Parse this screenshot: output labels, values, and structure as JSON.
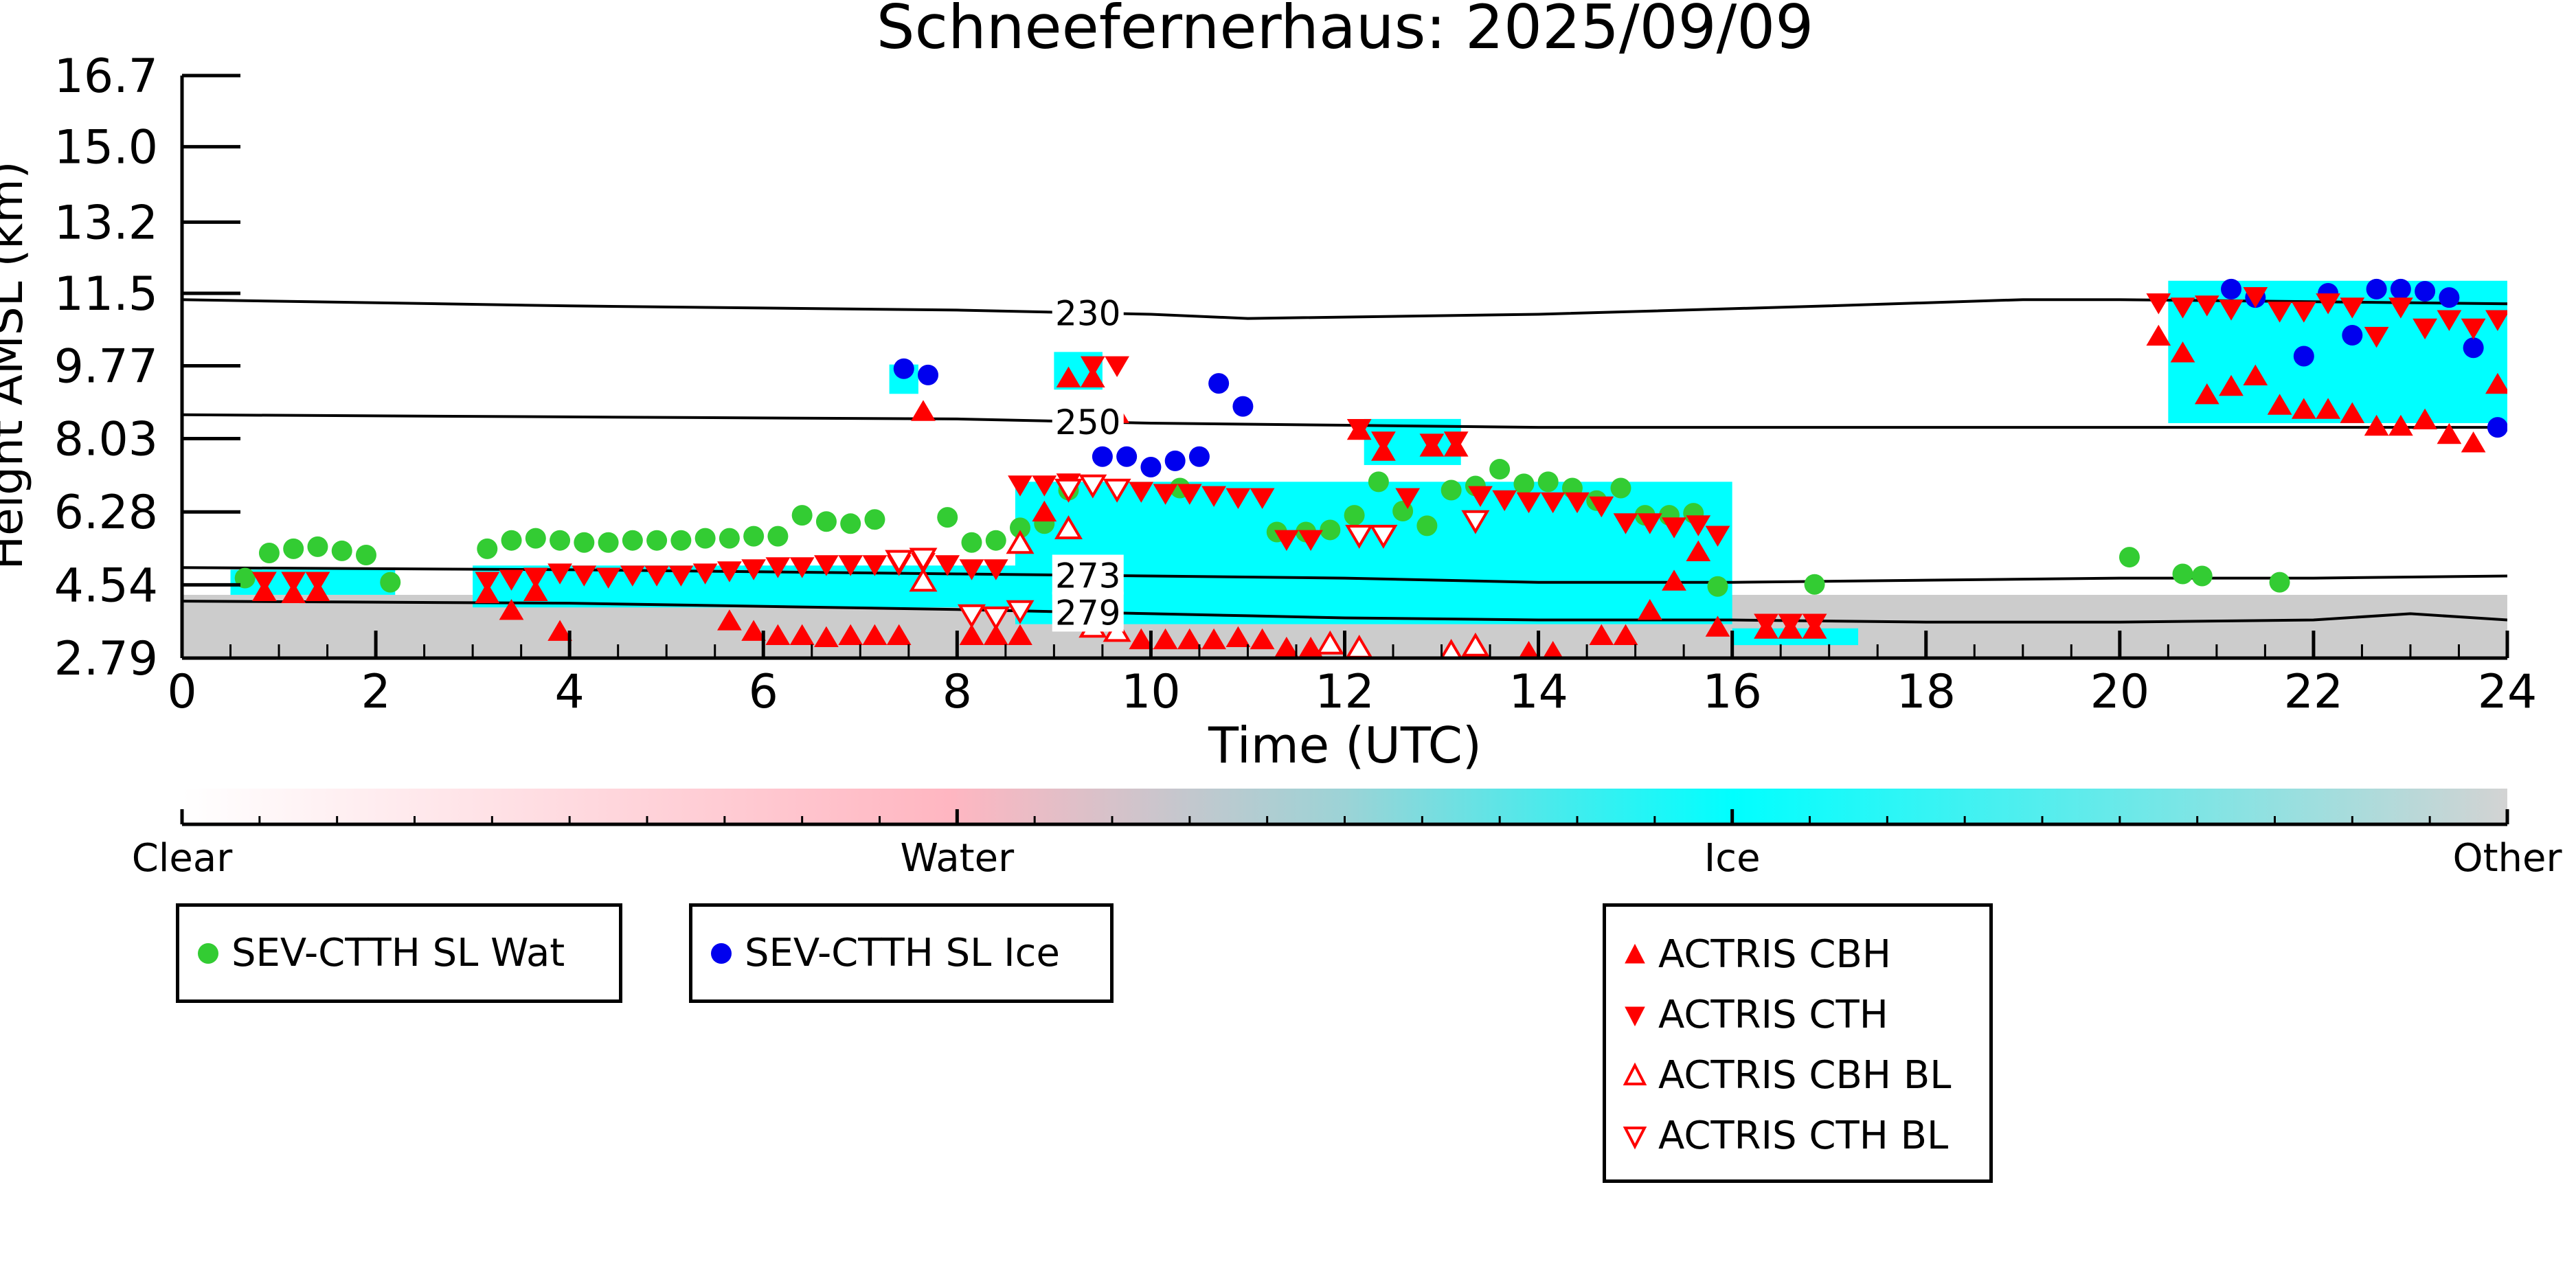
{
  "chart_data": {
    "type": "scatter",
    "title": "Schneefernerhaus: 2025/09/09",
    "xlabel": "Time (UTC)",
    "ylabel": "Height AMSL (km)",
    "xlim": [
      0,
      24
    ],
    "ylim": [
      2.79,
      16.7
    ],
    "x_ticks": [
      0,
      2,
      4,
      6,
      8,
      10,
      12,
      14,
      16,
      18,
      20,
      22,
      24
    ],
    "y_ticks": [
      2.79,
      4.54,
      6.28,
      8.03,
      9.77,
      11.5,
      13.2,
      15.0,
      16.7
    ],
    "y_tick_labels": [
      "2.79",
      "4.54",
      "6.28",
      "8.03",
      "9.77",
      "11.5",
      "13.2",
      "15.0",
      "16.7"
    ],
    "grid": false,
    "colorbar": {
      "labels": [
        "Clear",
        "Water",
        "Ice",
        "Other"
      ],
      "stops": [
        {
          "offset": 0.0,
          "color": "#ffffff"
        },
        {
          "offset": 0.33,
          "color": "#ffb6c1"
        },
        {
          "offset": 0.5,
          "color": "#9cd3d6"
        },
        {
          "offset": 0.667,
          "color": "#00ffff"
        },
        {
          "offset": 1.0,
          "color": "#d3d3d3"
        }
      ]
    },
    "colors": {
      "ice": "#00ffff",
      "other": "#cccccc",
      "water": "#ffb6c1",
      "wat_marker": "#33cc33",
      "ice_marker": "#0000ee",
      "actris": "#ff0000"
    },
    "cloud_mask_regions": [
      {
        "class": "Other",
        "x": [
          0,
          24
        ],
        "y": [
          2.79,
          4.3
        ]
      },
      {
        "class": "Ice",
        "x": [
          0.5,
          2.2
        ],
        "y": [
          4.3,
          4.9
        ]
      },
      {
        "class": "Ice",
        "x": [
          3.0,
          8.7
        ],
        "y": [
          4.0,
          5.0
        ]
      },
      {
        "class": "Ice",
        "x": [
          8.6,
          16.0
        ],
        "y": [
          3.6,
          7.0
        ]
      },
      {
        "class": "Ice",
        "x": [
          16.0,
          17.3
        ],
        "y": [
          3.1,
          3.5
        ]
      },
      {
        "class": "Ice",
        "x": [
          12.2,
          13.2
        ],
        "y": [
          7.4,
          8.5
        ]
      },
      {
        "class": "Ice",
        "x": [
          20.5,
          24.0
        ],
        "y": [
          8.4,
          11.8
        ]
      },
      {
        "class": "Ice",
        "x": [
          7.3,
          7.6
        ],
        "y": [
          9.1,
          9.8
        ]
      },
      {
        "class": "Ice",
        "x": [
          9.0,
          9.5
        ],
        "y": [
          9.2,
          10.1
        ]
      }
    ],
    "contours": [
      {
        "label": "230",
        "label_x": 9.35,
        "x": [
          0,
          4,
          8,
          10,
          11,
          14,
          17,
          19,
          20,
          22,
          24
        ],
        "y": [
          11.35,
          11.2,
          11.1,
          11.0,
          10.9,
          11.0,
          11.2,
          11.35,
          11.35,
          11.3,
          11.25
        ]
      },
      {
        "label": "250",
        "label_x": 9.35,
        "x": [
          0,
          4,
          8,
          10,
          12,
          14,
          16,
          18,
          20,
          22,
          24
        ],
        "y": [
          8.6,
          8.55,
          8.5,
          8.4,
          8.35,
          8.3,
          8.3,
          8.3,
          8.3,
          8.3,
          8.3
        ]
      },
      {
        "label": "273",
        "label_x": 9.35,
        "x": [
          0,
          4,
          8,
          10,
          12,
          14,
          16,
          18,
          20,
          22,
          24
        ],
        "y": [
          4.95,
          4.9,
          4.8,
          4.75,
          4.7,
          4.6,
          4.6,
          4.65,
          4.7,
          4.7,
          4.75
        ]
      },
      {
        "label": "279",
        "label_x": 9.35,
        "x": [
          0,
          4,
          8,
          10,
          11,
          12,
          14,
          16,
          18,
          20,
          22,
          23,
          24
        ],
        "y": [
          4.15,
          4.1,
          3.95,
          3.85,
          3.8,
          3.75,
          3.7,
          3.7,
          3.65,
          3.65,
          3.7,
          3.85,
          3.7
        ]
      }
    ],
    "series": [
      {
        "name": "SEV-CTTH SL Wat",
        "marker": "circle",
        "x": [
          0.65,
          0.9,
          1.15,
          1.4,
          1.65,
          1.9,
          2.15,
          3.15,
          3.4,
          3.65,
          3.9,
          4.15,
          4.4,
          4.65,
          4.9,
          5.15,
          5.4,
          5.65,
          5.9,
          6.15,
          6.4,
          6.65,
          6.9,
          7.15,
          7.9,
          8.15,
          8.4,
          8.65,
          8.9,
          9.15,
          10.3,
          11.3,
          11.6,
          11.85,
          12.1,
          12.35,
          12.6,
          12.85,
          13.1,
          13.35,
          13.6,
          13.85,
          14.1,
          14.35,
          14.6,
          14.85,
          15.1,
          15.35,
          15.6,
          15.85,
          16.85,
          20.1,
          20.65,
          20.85,
          21.65
        ],
        "y": [
          4.7,
          5.3,
          5.4,
          5.45,
          5.35,
          5.25,
          4.6,
          5.4,
          5.6,
          5.65,
          5.6,
          5.55,
          5.55,
          5.6,
          5.6,
          5.6,
          5.65,
          5.65,
          5.7,
          5.7,
          6.2,
          6.05,
          6.0,
          6.1,
          6.15,
          5.55,
          5.6,
          5.9,
          6.0,
          6.8,
          6.85,
          5.8,
          5.8,
          5.85,
          6.2,
          7.0,
          6.3,
          5.95,
          6.8,
          6.9,
          7.3,
          6.95,
          7.0,
          6.85,
          6.55,
          6.85,
          6.2,
          6.2,
          6.25,
          4.5,
          4.55,
          5.2,
          4.8,
          4.75,
          4.6
        ]
      },
      {
        "name": "SEV-CTTH SL Ice",
        "marker": "circle",
        "x": [
          7.45,
          7.7,
          9.5,
          9.75,
          10.0,
          10.25,
          10.5,
          10.7,
          10.95,
          21.15,
          21.4,
          21.9,
          22.15,
          22.4,
          22.65,
          22.9,
          23.15,
          23.4,
          23.65,
          23.9
        ],
        "y": [
          9.7,
          9.55,
          7.6,
          7.6,
          7.35,
          7.5,
          7.6,
          9.35,
          8.8,
          11.6,
          11.4,
          10.0,
          11.5,
          10.5,
          11.6,
          11.6,
          11.55,
          11.4,
          10.2,
          8.3
        ]
      },
      {
        "name": "ACTRIS CBH",
        "marker": "triangle-up",
        "filled": true,
        "x": [
          0.85,
          1.15,
          1.4,
          3.15,
          3.4,
          3.65,
          3.9,
          5.65,
          5.9,
          6.15,
          6.4,
          6.65,
          6.9,
          7.15,
          7.4,
          7.65,
          8.15,
          8.4,
          8.65,
          8.9,
          9.15,
          9.4,
          9.65,
          9.9,
          10.15,
          10.4,
          10.65,
          10.9,
          11.15,
          11.4,
          11.65,
          12.15,
          12.4,
          12.9,
          13.15,
          13.9,
          14.15,
          14.65,
          14.9,
          15.15,
          15.4,
          15.65,
          15.85,
          16.35,
          16.6,
          16.85,
          20.4,
          20.65,
          20.9,
          21.15,
          21.4,
          21.65,
          21.9,
          22.15,
          22.4,
          22.65,
          22.9,
          23.15,
          23.4,
          23.65,
          23.9
        ],
        "y": [
          4.35,
          4.3,
          4.35,
          4.3,
          3.9,
          4.35,
          3.4,
          3.65,
          3.4,
          3.3,
          3.3,
          3.25,
          3.3,
          3.3,
          3.3,
          8.65,
          3.3,
          3.3,
          3.3,
          6.25,
          9.45,
          9.45,
          8.6,
          3.2,
          3.2,
          3.2,
          3.2,
          3.25,
          3.2,
          3.0,
          3.0,
          8.2,
          7.7,
          7.8,
          7.8,
          2.9,
          2.9,
          3.3,
          3.3,
          3.9,
          4.6,
          5.3,
          3.5,
          3.45,
          3.45,
          3.45,
          10.45,
          10.05,
          9.05,
          9.25,
          9.5,
          8.8,
          8.7,
          8.7,
          8.6,
          8.3,
          8.3,
          8.45,
          8.1,
          7.9,
          9.3
        ]
      },
      {
        "name": "ACTRIS CTH",
        "marker": "triangle-down",
        "filled": true,
        "x": [
          0.85,
          1.15,
          1.4,
          3.15,
          3.4,
          3.65,
          3.9,
          4.15,
          4.4,
          4.65,
          4.9,
          5.15,
          5.4,
          5.65,
          5.9,
          6.15,
          6.4,
          6.65,
          6.9,
          7.15,
          7.4,
          7.65,
          7.9,
          8.15,
          8.4,
          8.65,
          8.9,
          9.15,
          9.4,
          9.65,
          9.9,
          10.15,
          10.4,
          10.65,
          10.9,
          11.15,
          11.4,
          11.65,
          12.15,
          12.4,
          12.65,
          12.9,
          13.15,
          13.4,
          13.65,
          13.9,
          14.15,
          14.4,
          14.65,
          14.9,
          15.15,
          15.4,
          15.65,
          15.85,
          16.35,
          16.6,
          16.85,
          20.4,
          20.65,
          20.9,
          21.15,
          21.4,
          21.65,
          21.9,
          22.15,
          22.4,
          22.65,
          22.9,
          23.15,
          23.4,
          23.65,
          23.9
        ],
        "y": [
          4.65,
          4.65,
          4.65,
          4.65,
          4.7,
          4.75,
          4.85,
          4.8,
          4.75,
          4.8,
          4.8,
          4.8,
          4.85,
          4.9,
          4.95,
          5.0,
          5.0,
          5.05,
          5.05,
          5.05,
          5.05,
          5.1,
          5.05,
          4.95,
          4.95,
          6.95,
          6.95,
          7.0,
          9.8,
          9.8,
          6.8,
          6.75,
          6.75,
          6.7,
          6.65,
          6.65,
          5.65,
          5.65,
          8.3,
          8.0,
          6.65,
          7.95,
          8.0,
          6.7,
          6.6,
          6.55,
          6.55,
          6.55,
          6.45,
          6.05,
          6.05,
          5.95,
          6.0,
          5.75,
          3.65,
          3.65,
          3.65,
          11.3,
          11.2,
          11.25,
          11.15,
          11.45,
          11.1,
          11.1,
          11.3,
          11.2,
          10.5,
          11.2,
          10.7,
          10.9,
          10.7,
          10.9
        ]
      },
      {
        "name": "ACTRIS CBH BL",
        "marker": "triangle-up",
        "filled": false,
        "x": [
          7.65,
          8.65,
          9.15,
          9.4,
          9.65,
          11.85,
          12.15,
          13.1,
          13.35
        ],
        "y": [
          4.6,
          5.5,
          5.85,
          3.5,
          3.4,
          3.1,
          3.0,
          2.9,
          3.05
        ]
      },
      {
        "name": "ACTRIS CTH BL",
        "marker": "triangle-down",
        "filled": false,
        "x": [
          7.4,
          7.65,
          8.15,
          8.4,
          8.65,
          9.15,
          9.4,
          9.65,
          12.15,
          12.4,
          13.35
        ],
        "y": [
          5.15,
          5.2,
          3.85,
          3.8,
          3.95,
          6.85,
          6.95,
          6.85,
          5.75,
          5.75,
          6.1
        ]
      }
    ]
  },
  "legends": {
    "box1": [
      {
        "label": "SEV-CTTH SL Wat",
        "icon": "green-circle"
      }
    ],
    "box2": [
      {
        "label": "SEV-CTTH SL Ice",
        "icon": "blue-circle"
      }
    ],
    "box3": [
      {
        "label": "ACTRIS CBH",
        "icon": "red-triangle-up"
      },
      {
        "label": "ACTRIS CTH",
        "icon": "red-triangle-down"
      },
      {
        "label": "ACTRIS CBH BL",
        "icon": "red-triangle-up-open"
      },
      {
        "label": "ACTRIS CTH BL",
        "icon": "red-triangle-down-open"
      }
    ]
  }
}
